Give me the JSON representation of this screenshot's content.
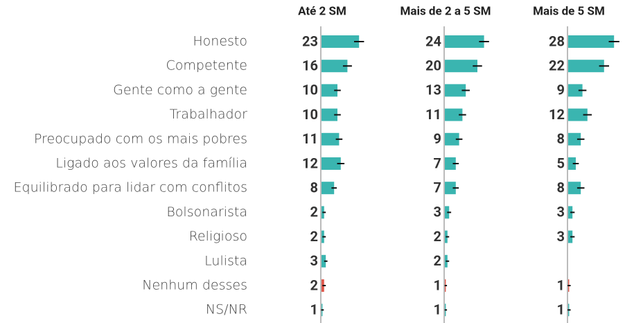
{
  "chart_data": {
    "type": "bar",
    "orientation": "horizontal",
    "categories": [
      "Honesto",
      "Competente",
      "Gente como a gente",
      "Trabalhador",
      "Preocupado com os mais pobres",
      "Ligado aos valores da família",
      "Equilibrado para lidar com conflitos",
      "Bolsonarista",
      "Religioso",
      "Lulista",
      "Nenhum desses",
      "NS/NR"
    ],
    "xlim": [
      0,
      30
    ],
    "series": [
      {
        "name": "Até 2 SM",
        "values": [
          23,
          16,
          10,
          10,
          11,
          12,
          8,
          2,
          2,
          3,
          2,
          1
        ],
        "errors": [
          3,
          2.7,
          2,
          2,
          2,
          2.2,
          1.6,
          1,
          1,
          1,
          1,
          0.8
        ],
        "colors": [
          "#3ab5b0",
          "#3ab5b0",
          "#3ab5b0",
          "#3ab5b0",
          "#3ab5b0",
          "#3ab5b0",
          "#3ab5b0",
          "#3ab5b0",
          "#3ab5b0",
          "#3ab5b0",
          "#e0584c",
          "#3ab5b0"
        ]
      },
      {
        "name": "Mais de 2 a 5 SM",
        "values": [
          24,
          20,
          13,
          11,
          9,
          7,
          7,
          3,
          2,
          2,
          1,
          1
        ],
        "errors": [
          3,
          2.8,
          2.4,
          2.2,
          2,
          1.8,
          1.8,
          1.2,
          1,
          1,
          0.7,
          0.7
        ],
        "colors": [
          "#3ab5b0",
          "#3ab5b0",
          "#3ab5b0",
          "#3ab5b0",
          "#3ab5b0",
          "#3ab5b0",
          "#3ab5b0",
          "#3ab5b0",
          "#3ab5b0",
          "#3ab5b0",
          "#e0584c",
          "#3ab5b0"
        ]
      },
      {
        "name": "Mais de 5 SM",
        "values": [
          28,
          22,
          9,
          12,
          8,
          5,
          8,
          3,
          3,
          null,
          1,
          1
        ],
        "errors": [
          3.2,
          3,
          2.4,
          2.6,
          2.2,
          1.8,
          2.2,
          1.3,
          1.3,
          null,
          0.9,
          0.9
        ],
        "colors": [
          "#3ab5b0",
          "#3ab5b0",
          "#3ab5b0",
          "#3ab5b0",
          "#3ab5b0",
          "#3ab5b0",
          "#3ab5b0",
          "#3ab5b0",
          "#3ab5b0",
          "#3ab5b0",
          "#e0584c",
          "#3ab5b0"
        ]
      }
    ]
  }
}
